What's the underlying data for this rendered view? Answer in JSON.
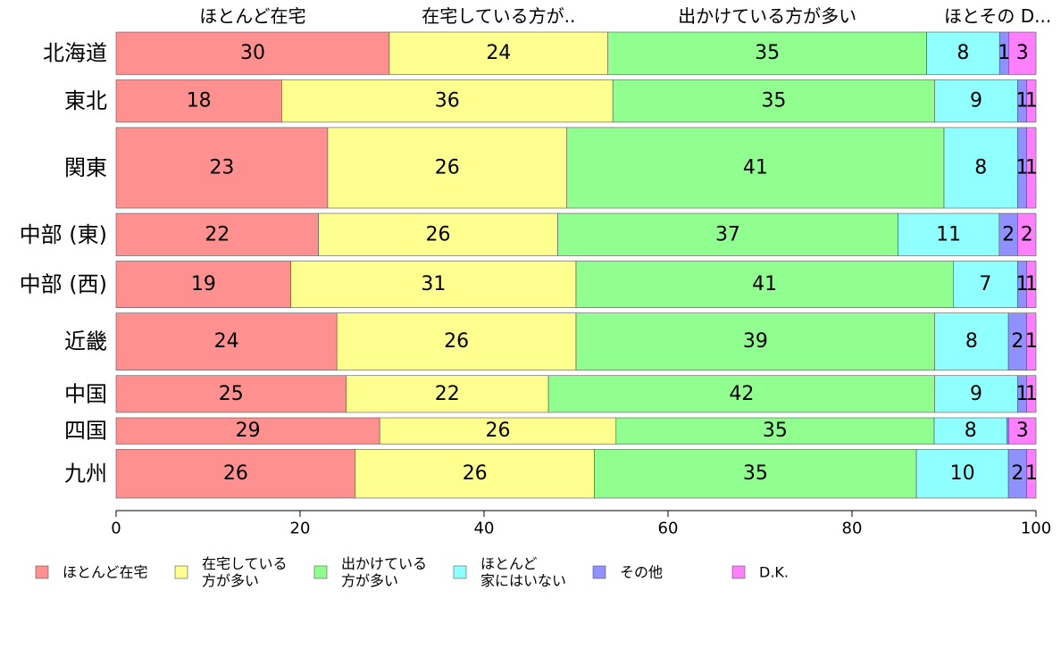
{
  "chart_data": {
    "type": "bar",
    "orientation": "horizontal",
    "stacked": true,
    "percent": true,
    "categories": [
      "北海道",
      "東北",
      "関東",
      "中部 (東)",
      "中部 (西)",
      "近畿",
      "中国",
      "四国",
      "九州"
    ],
    "category_weights": [
      1.0,
      1.0,
      1.9,
      1.0,
      1.1,
      1.35,
      0.87,
      0.62,
      1.15
    ],
    "series": [
      {
        "name": "ほとんど在宅",
        "legend_lines": [
          "ほとんど在宅"
        ],
        "color": "#ff9090",
        "values": [
          30,
          18,
          23,
          22,
          19,
          24,
          25,
          29,
          26
        ],
        "display": [
          "30",
          "18",
          "23",
          "22",
          "19",
          "24",
          "25",
          "29",
          "26"
        ]
      },
      {
        "name": "在宅している方が多い",
        "legend_lines": [
          "在宅している",
          "方が多い"
        ],
        "color": "#ffff90",
        "values": [
          24,
          36,
          26,
          26,
          31,
          26,
          22,
          26,
          26
        ],
        "display": [
          "24",
          "36",
          "26",
          "26",
          "31",
          "26",
          "22",
          "26",
          "26"
        ]
      },
      {
        "name": "出かけている方が多い",
        "legend_lines": [
          "出かけている",
          "方が多い"
        ],
        "color": "#90ff90",
        "values": [
          35,
          35,
          41,
          37,
          41,
          39,
          42,
          35,
          35
        ],
        "display": [
          "35",
          "35",
          "41",
          "37",
          "41",
          "39",
          "42",
          "35",
          "35"
        ]
      },
      {
        "name": "ほとんど家にはいない",
        "legend_lines": [
          "ほとんど",
          "家にはいない"
        ],
        "color": "#90ffff",
        "values": [
          8,
          9,
          8,
          11,
          7,
          8,
          9,
          8,
          10
        ],
        "display": [
          "8",
          "9",
          "8",
          "11",
          "7",
          "8",
          "9",
          "8",
          "10"
        ]
      },
      {
        "name": "その他",
        "legend_lines": [
          "その他"
        ],
        "color": "#9090ff",
        "values": [
          1,
          1,
          1,
          2,
          1,
          2,
          1,
          0.2,
          2
        ],
        "display": [
          "1",
          "1",
          "1",
          "2",
          "1",
          "2",
          "1",
          "",
          "2"
        ]
      },
      {
        "name": "D.K.",
        "legend_lines": [
          "D.K."
        ],
        "color": "#ff80ff",
        "values": [
          3,
          1,
          1,
          2,
          1,
          1,
          1,
          3,
          1
        ],
        "display": [
          "3",
          "1",
          "1",
          "2",
          "1",
          "1",
          "1",
          "3",
          "1"
        ]
      }
    ],
    "top_labels": [
      "ほとんど在宅",
      "在宅している方が..",
      "出かけている方が多い",
      "ほとその",
      "D..."
    ],
    "x_ticks": [
      0,
      20,
      40,
      60,
      80,
      100
    ],
    "xlim": [
      0,
      100
    ],
    "grid": false,
    "legend_position": "bottom"
  }
}
